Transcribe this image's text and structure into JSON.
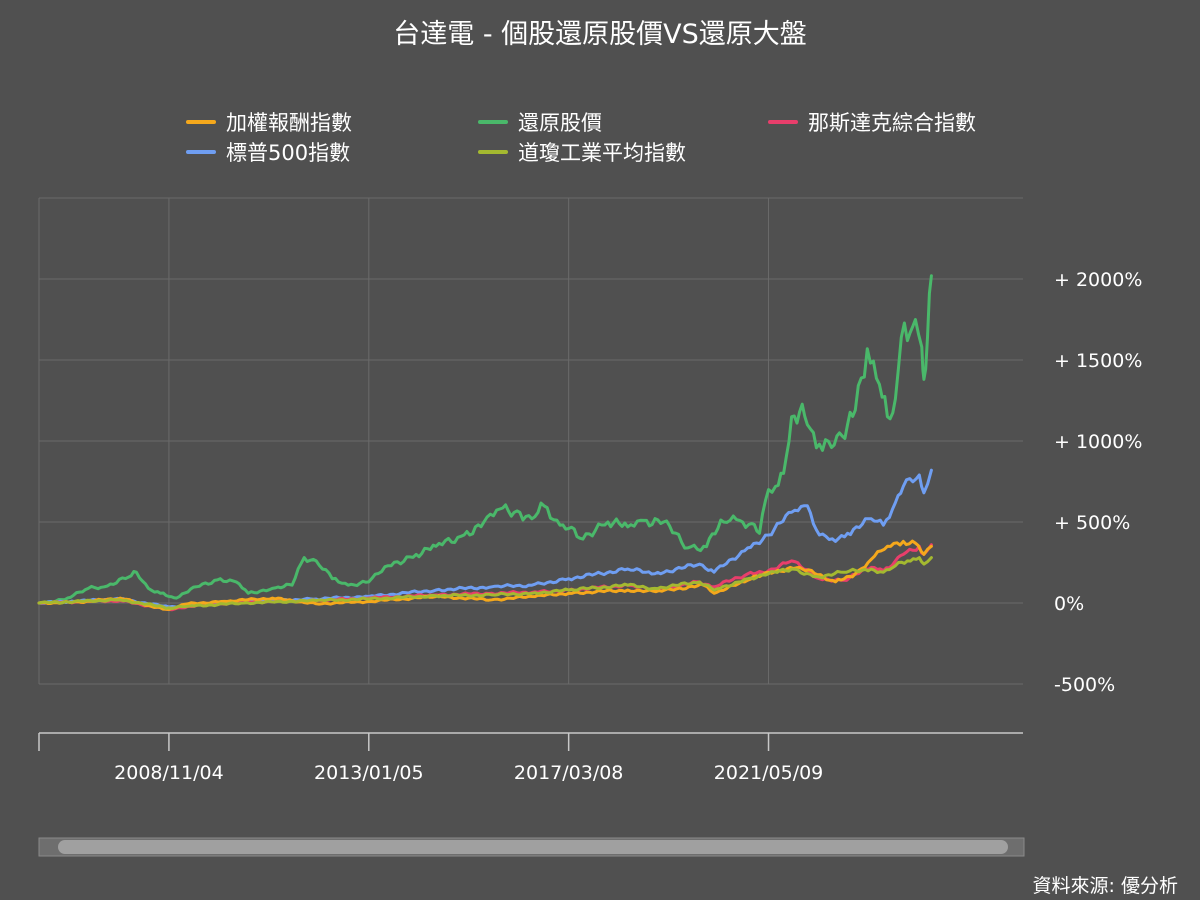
{
  "chart_data": {
    "type": "line",
    "title": "台達電 - 個股還原股價VS還原大盤",
    "xlabel": "",
    "ylabel": "",
    "x_start": "2006/02/18",
    "x_end": "2023/09/22",
    "x_ticks": [
      "2008/11/04",
      "2013/01/05",
      "2017/03/08",
      "2021/05/09"
    ],
    "y_ticks": [
      {
        "value": 2000,
        "label": "+ 2000%"
      },
      {
        "value": 1500,
        "label": "+ 1500%"
      },
      {
        "value": 1000,
        "label": "+ 1000%"
      },
      {
        "value": 500,
        "label": "+ 500%"
      },
      {
        "value": 0,
        "label": "0%"
      },
      {
        "value": -500,
        "label": "-500%"
      }
    ],
    "ylim": [
      -500,
      2500
    ],
    "grid": true,
    "legend_position": "top",
    "series": [
      {
        "name": "加權報酬指數",
        "color": "#f5a81c",
        "points": [
          [
            "2006/02/18",
            0
          ],
          [
            "2007/01/01",
            5
          ],
          [
            "2007/10/29",
            30
          ],
          [
            "2008/06/01",
            -15
          ],
          [
            "2008/11/04",
            -40
          ],
          [
            "2009/04/01",
            -5
          ],
          [
            "2010/01/01",
            10
          ],
          [
            "2011/01/01",
            30
          ],
          [
            "2011/12/01",
            -5
          ],
          [
            "2013/01/05",
            10
          ],
          [
            "2014/06/01",
            40
          ],
          [
            "2015/08/01",
            20
          ],
          [
            "2016/06/01",
            40
          ],
          [
            "2017/03/08",
            60
          ],
          [
            "2018/06/01",
            80
          ],
          [
            "2019/01/01",
            70
          ],
          [
            "2020/01/01",
            110
          ],
          [
            "2020/03/20",
            60
          ],
          [
            "2020/12/01",
            140
          ],
          [
            "2021/05/09",
            190
          ],
          [
            "2022/01/01",
            220
          ],
          [
            "2022/10/01",
            130
          ],
          [
            "2023/03/01",
            180
          ],
          [
            "2023/07/01",
            270
          ],
          [
            "2023/11/01",
            350
          ],
          [
            "2024/03/01",
            380
          ],
          [
            "2024/06/01",
            370
          ],
          [
            "2024/08/05",
            300
          ],
          [
            "2024/10/01",
            350
          ]
        ]
      },
      {
        "name": "還原股價",
        "color": "#4ab86a",
        "points": [
          [
            "2006/02/18",
            0
          ],
          [
            "2006/09/01",
            20
          ],
          [
            "2007/03/01",
            90
          ],
          [
            "2007/07/01",
            100
          ],
          [
            "2008/01/01",
            160
          ],
          [
            "2008/03/01",
            190
          ],
          [
            "2008/06/01",
            90
          ],
          [
            "2008/09/01",
            60
          ],
          [
            "2008/11/04",
            40
          ],
          [
            "2009/01/01",
            30
          ],
          [
            "2009/06/01",
            100
          ],
          [
            "2009/12/01",
            150
          ],
          [
            "2010/04/01",
            130
          ],
          [
            "2010/07/01",
            60
          ],
          [
            "2011/01/01",
            90
          ],
          [
            "2011/06/01",
            110
          ],
          [
            "2011/09/01",
            280
          ],
          [
            "2011/12/01",
            260
          ],
          [
            "2012/04/01",
            150
          ],
          [
            "2012/08/01",
            110
          ],
          [
            "2013/01/05",
            130
          ],
          [
            "2013/06/01",
            230
          ],
          [
            "2014/01/01",
            300
          ],
          [
            "2014/06/01",
            350
          ],
          [
            "2015/01/01",
            420
          ],
          [
            "2015/06/01",
            500
          ],
          [
            "2015/10/01",
            580
          ],
          [
            "2016/03/01",
            560
          ],
          [
            "2016/06/01",
            520
          ],
          [
            "2016/09/01",
            600
          ],
          [
            "2017/01/01",
            480
          ],
          [
            "2017/03/08",
            460
          ],
          [
            "2017/06/01",
            400
          ],
          [
            "2018/01/01",
            500
          ],
          [
            "2018/06/01",
            470
          ],
          [
            "2018/10/01",
            510
          ],
          [
            "2019/03/01",
            500
          ],
          [
            "2019/09/01",
            340
          ],
          [
            "2020/01/01",
            350
          ],
          [
            "2020/06/01",
            500
          ],
          [
            "2020/10/01",
            510
          ],
          [
            "2021/01/01",
            490
          ],
          [
            "2021/03/01",
            430
          ],
          [
            "2021/05/09",
            700
          ],
          [
            "2021/07/01",
            720
          ],
          [
            "2021/09/01",
            800
          ],
          [
            "2021/11/01",
            1150
          ],
          [
            "2022/01/01",
            1180
          ],
          [
            "2022/03/01",
            1100
          ],
          [
            "2022/06/01",
            980
          ],
          [
            "2022/09/01",
            960
          ],
          [
            "2022/11/01",
            1050
          ],
          [
            "2023/01/01",
            1100
          ],
          [
            "2023/03/01",
            1190
          ],
          [
            "2023/06/01",
            1570
          ],
          [
            "2023/09/01",
            1350
          ],
          [
            "2023/11/01",
            1150
          ],
          [
            "2024/01/01",
            1260
          ],
          [
            "2024/02/15",
            1640
          ],
          [
            "2024/04/01",
            1620
          ],
          [
            "2024/06/01",
            1750
          ],
          [
            "2024/07/20",
            1580
          ],
          [
            "2024/08/05",
            1380
          ],
          [
            "2024/09/01",
            1640
          ],
          [
            "2024/10/01",
            2020
          ]
        ]
      },
      {
        "name": "那斯達克綜合指數",
        "color": "#e83e6b",
        "points": [
          [
            "2006/02/18",
            0
          ],
          [
            "2007/10/29",
            15
          ],
          [
            "2008/11/04",
            -40
          ],
          [
            "2009/04/01",
            -20
          ],
          [
            "2010/06/01",
            5
          ],
          [
            "2011/12/01",
            15
          ],
          [
            "2013/01/05",
            30
          ],
          [
            "2014/06/01",
            50
          ],
          [
            "2015/08/01",
            60
          ],
          [
            "2016/06/01",
            65
          ],
          [
            "2017/03/08",
            80
          ],
          [
            "2018/06/01",
            110
          ],
          [
            "2018/12/24",
            80
          ],
          [
            "2019/12/01",
            130
          ],
          [
            "2020/03/20",
            100
          ],
          [
            "2020/12/01",
            180
          ],
          [
            "2021/05/09",
            200
          ],
          [
            "2021/11/01",
            260
          ],
          [
            "2022/06/01",
            150
          ],
          [
            "2022/12/01",
            140
          ],
          [
            "2023/07/01",
            220
          ],
          [
            "2023/10/01",
            200
          ],
          [
            "2024/01/01",
            260
          ],
          [
            "2024/03/01",
            300
          ],
          [
            "2024/07/01",
            350
          ],
          [
            "2024/08/05",
            300
          ],
          [
            "2024/10/01",
            360
          ]
        ]
      },
      {
        "name": "標普500指數",
        "color": "#6f9ef2",
        "points": [
          [
            "2006/02/18",
            0
          ],
          [
            "2007/10/29",
            25
          ],
          [
            "2008/11/04",
            -25
          ],
          [
            "2009/04/01",
            -15
          ],
          [
            "2010/06/01",
            10
          ],
          [
            "2011/12/01",
            25
          ],
          [
            "2013/01/05",
            40
          ],
          [
            "2014/06/01",
            80
          ],
          [
            "2015/08/01",
            100
          ],
          [
            "2016/06/01",
            110
          ],
          [
            "2017/03/08",
            150
          ],
          [
            "2018/06/01",
            210
          ],
          [
            "2018/12/24",
            180
          ],
          [
            "2019/12/01",
            240
          ],
          [
            "2020/03/20",
            190
          ],
          [
            "2020/12/01",
            340
          ],
          [
            "2021/05/09",
            420
          ],
          [
            "2021/11/01",
            560
          ],
          [
            "2022/03/01",
            600
          ],
          [
            "2022/06/01",
            420
          ],
          [
            "2022/10/01",
            380
          ],
          [
            "2023/01/01",
            430
          ],
          [
            "2023/07/01",
            520
          ],
          [
            "2023/10/01",
            480
          ],
          [
            "2024/01/01",
            620
          ],
          [
            "2024/03/01",
            720
          ],
          [
            "2024/07/01",
            790
          ],
          [
            "2024/08/05",
            680
          ],
          [
            "2024/10/01",
            820
          ]
        ]
      },
      {
        "name": "道瓊工業平均指數",
        "color": "#a4b930",
        "points": [
          [
            "2006/02/18",
            0
          ],
          [
            "2007/10/29",
            20
          ],
          [
            "2008/11/04",
            -30
          ],
          [
            "2009/04/01",
            -20
          ],
          [
            "2010/06/01",
            0
          ],
          [
            "2011/12/01",
            15
          ],
          [
            "2013/01/05",
            25
          ],
          [
            "2014/06/01",
            45
          ],
          [
            "2015/08/01",
            50
          ],
          [
            "2016/06/01",
            60
          ],
          [
            "2017/03/08",
            80
          ],
          [
            "2018/06/01",
            110
          ],
          [
            "2018/12/24",
            90
          ],
          [
            "2019/12/01",
            130
          ],
          [
            "2020/03/20",
            80
          ],
          [
            "2020/12/01",
            150
          ],
          [
            "2021/05/09",
            180
          ],
          [
            "2021/11/01",
            210
          ],
          [
            "2022/06/01",
            160
          ],
          [
            "2022/12/01",
            190
          ],
          [
            "2023/07/01",
            210
          ],
          [
            "2023/10/01",
            190
          ],
          [
            "2024/01/01",
            230
          ],
          [
            "2024/04/01",
            260
          ],
          [
            "2024/07/01",
            280
          ],
          [
            "2024/08/05",
            240
          ],
          [
            "2024/10/01",
            280
          ]
        ]
      }
    ]
  },
  "source_note": "資料來源: 優分析",
  "colors": {
    "background": "#505050",
    "grid": "#6a6a6a",
    "axis": "#c8c8c8",
    "scrollbar_track": "#6e6e6e",
    "scrollbar_thumb": "#a0a0a0"
  }
}
